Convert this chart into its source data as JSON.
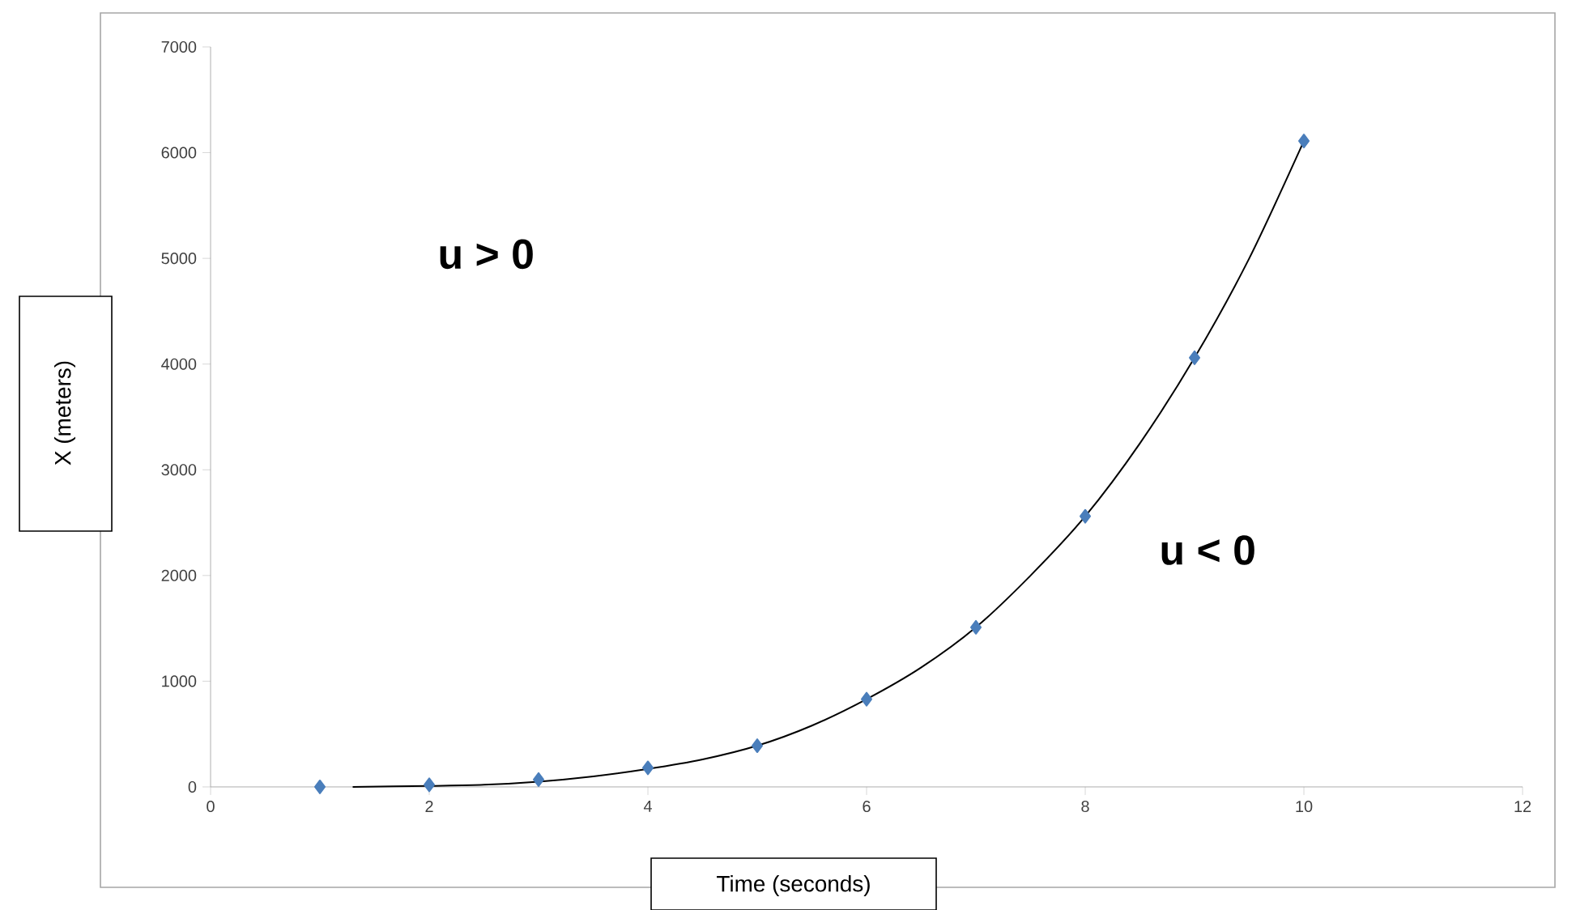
{
  "chart_data": {
    "type": "scatter",
    "xlabel": "Time (seconds)",
    "ylabel": "X (meters)",
    "xlim": [
      0,
      12
    ],
    "xticks": [
      0,
      2,
      4,
      6,
      8,
      10,
      12
    ],
    "ylim": [
      0,
      7000
    ],
    "yticks": [
      0,
      1000,
      2000,
      3000,
      4000,
      5000,
      6000,
      7000
    ],
    "grid": false,
    "series": [
      {
        "color": "#4a7ebb",
        "marker": "diamond",
        "x": [
          1,
          2,
          3,
          4,
          5,
          6,
          7,
          8,
          9,
          10
        ],
        "values": [
          0,
          20,
          70,
          180,
          390,
          830,
          1510,
          2560,
          4060,
          6110
        ]
      },
      {
        "type": "line",
        "color": "#000000",
        "marker": "none",
        "line_style": "solid",
        "x": [
          1.3,
          2,
          2.5,
          3,
          3.5,
          4,
          4.5,
          5,
          5.5,
          6,
          6.5,
          7,
          7.5,
          8,
          8.5,
          9,
          9.5,
          10
        ],
        "values": [
          0,
          10,
          20,
          50,
          100,
          170,
          260,
          390,
          580,
          830,
          1130,
          1510,
          2000,
          2560,
          3250,
          4060,
          5000,
          6110
        ]
      }
    ],
    "annotations": [
      "u > 0",
      "u < 0"
    ]
  }
}
